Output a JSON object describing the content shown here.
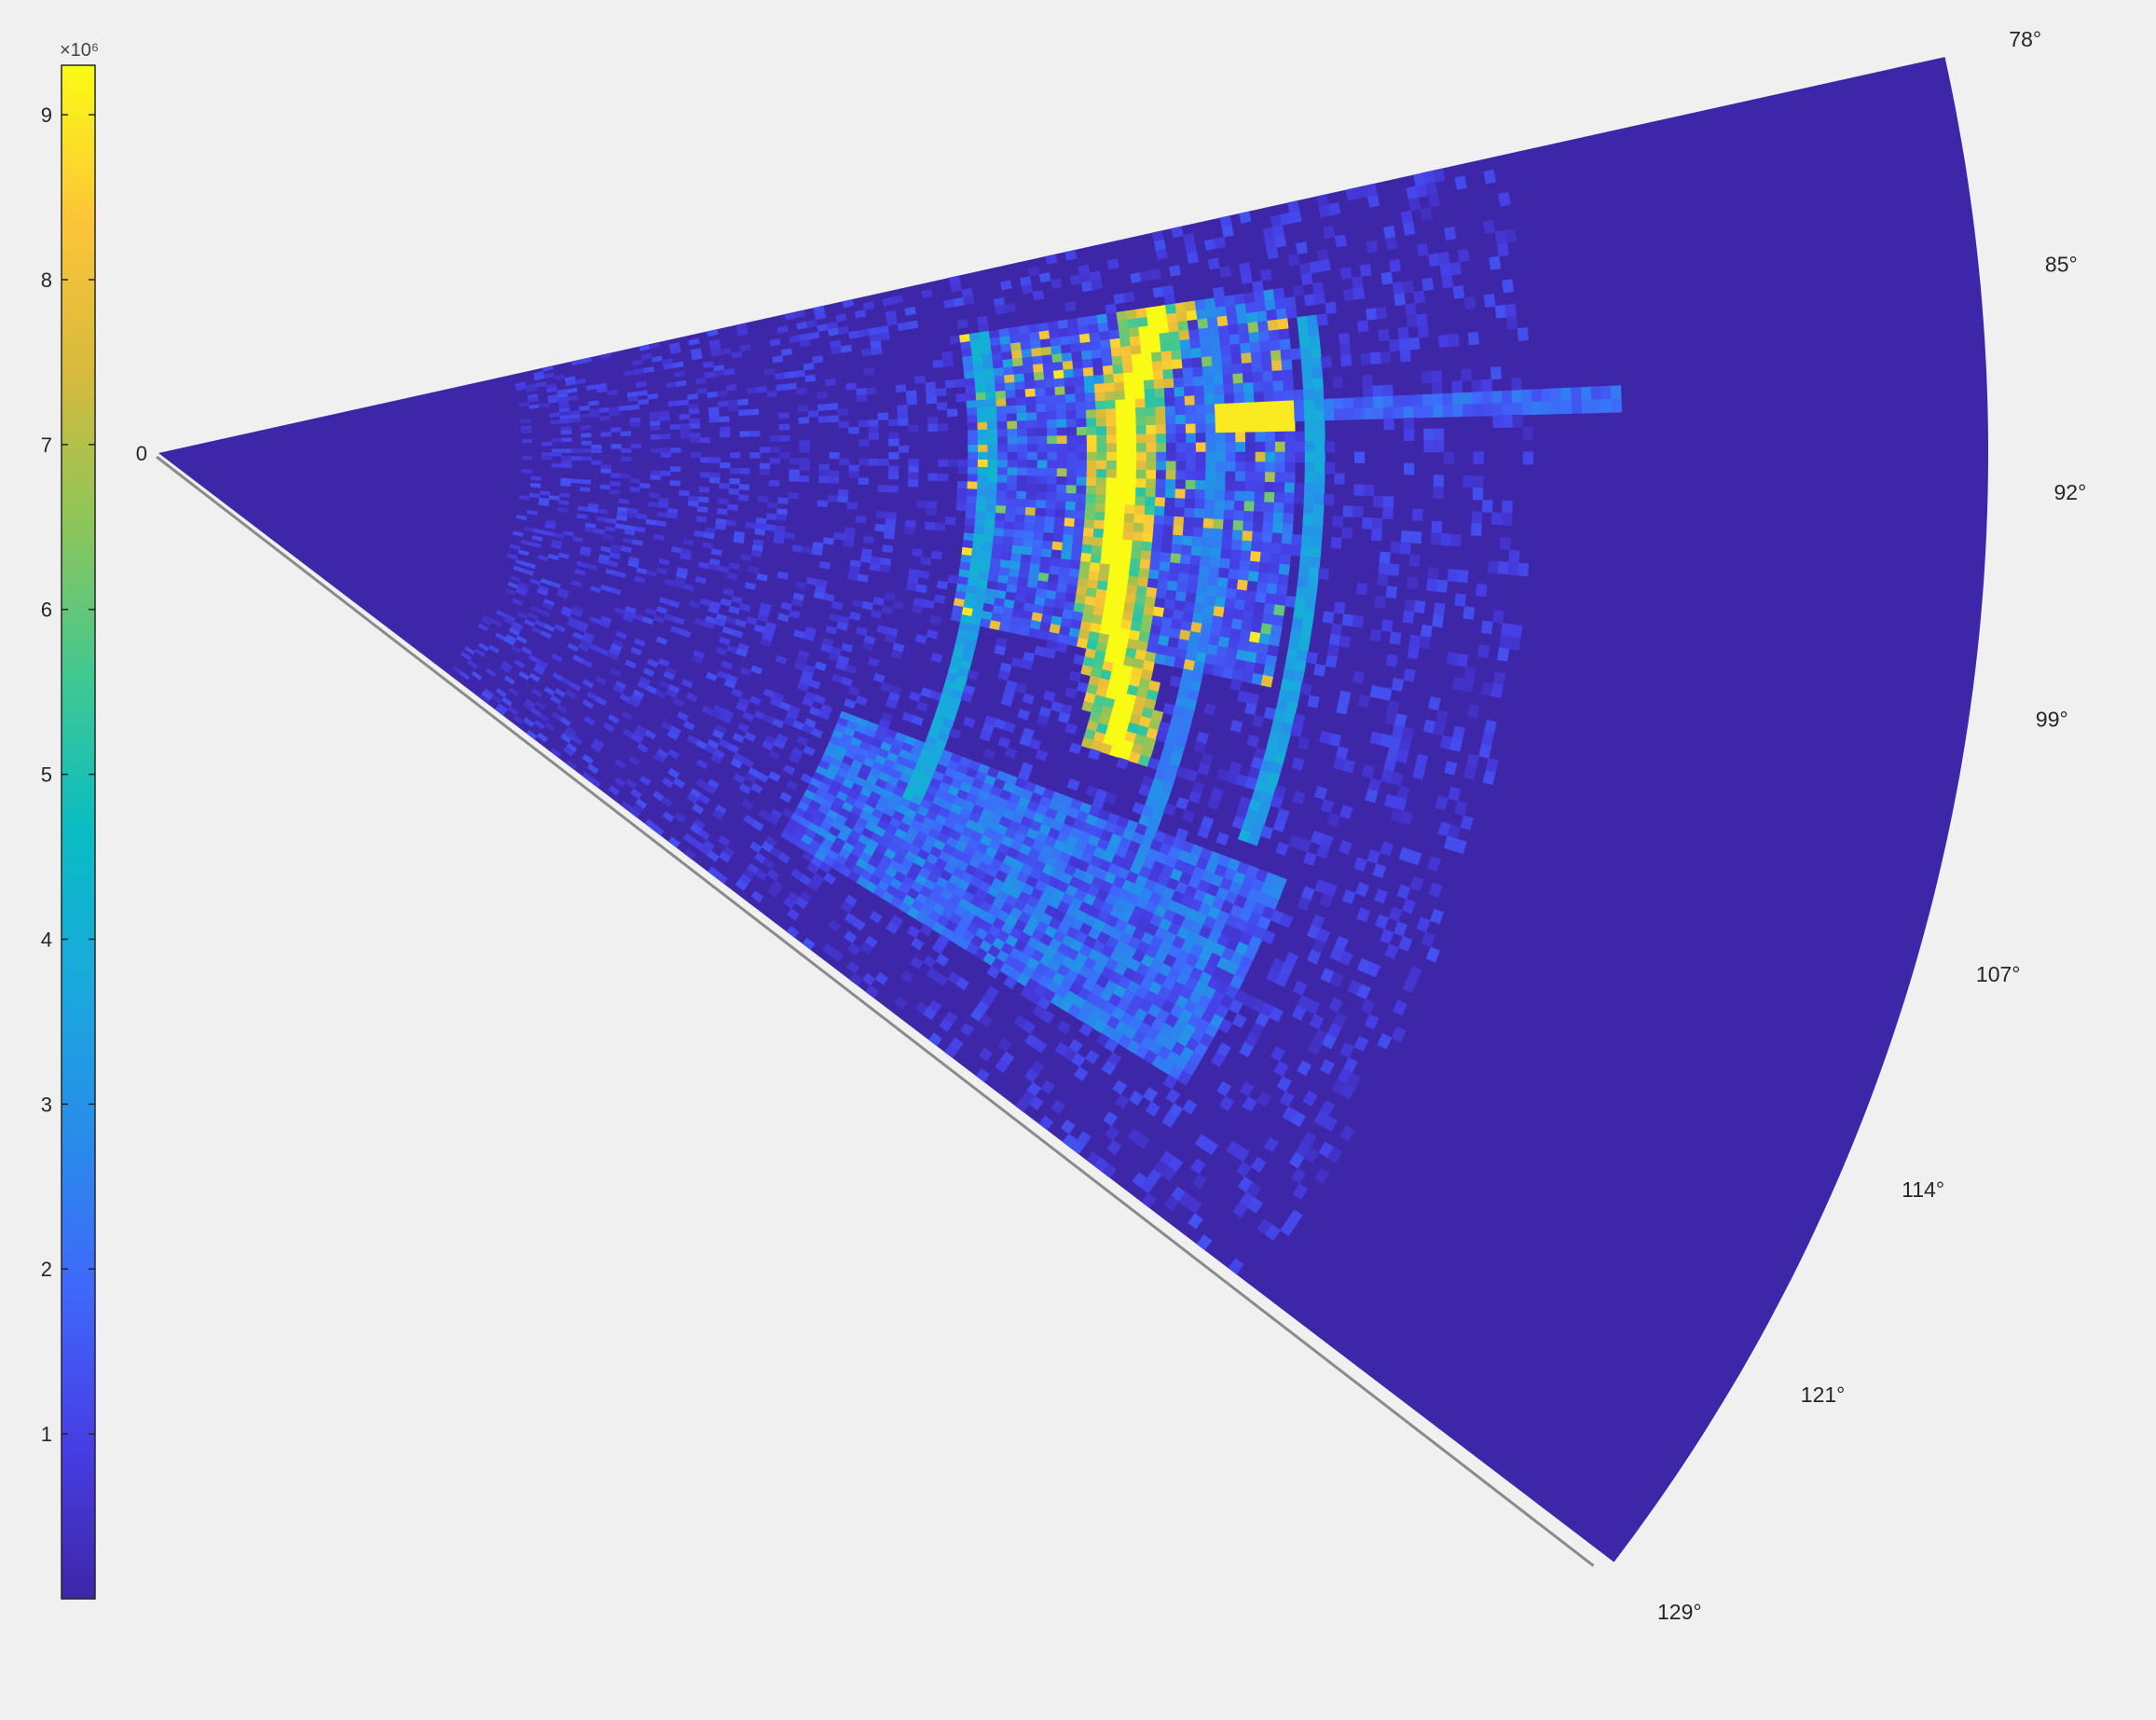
{
  "chart_data": {
    "type": "heatmap",
    "projection": "polar-sector",
    "theta_range_deg": [
      78,
      129
    ],
    "theta_ticks": [
      "78°",
      "85°",
      "92°",
      "99°",
      "107°",
      "114°",
      "121°",
      "129°"
    ],
    "theta_tick_values": [
      78,
      85,
      92,
      99,
      107,
      114,
      121,
      129
    ],
    "r_ticks": [
      "0"
    ],
    "grid": false,
    "colormap": "parula",
    "colorbar": {
      "placement": "left",
      "exponent_label": "×10⁶",
      "range": [
        0,
        9.3
      ],
      "ticks": [
        1,
        2,
        3,
        4,
        5,
        6,
        7,
        8,
        9
      ],
      "tick_labels": [
        "1",
        "2",
        "3",
        "4",
        "5",
        "6",
        "7",
        "8",
        "9"
      ]
    },
    "background_level": 0.25,
    "features": [
      {
        "kind": "bright-arc",
        "desc": "main yellow ridge",
        "theta_deg": [
          82,
          109
        ],
        "r_frac_at": [
          [
            82,
            0.555
          ],
          [
            88,
            0.53
          ],
          [
            95,
            0.525
          ],
          [
            101,
            0.53
          ],
          [
            106,
            0.545
          ],
          [
            109,
            0.55
          ]
        ],
        "value": 9.3
      },
      {
        "kind": "arc",
        "theta_deg": [
          82,
          116
        ],
        "r_frac": 0.455,
        "value": 4.3
      },
      {
        "kind": "arc",
        "theta_deg": [
          82,
          112
        ],
        "r_frac": 0.58,
        "value": 3.0
      },
      {
        "kind": "arc",
        "theta_deg": [
          84,
          111
        ],
        "r_frac": 0.63,
        "value": 4.0
      },
      {
        "kind": "ray",
        "theta_deg": 88.5,
        "r_frac": [
          0.55,
          0.82
        ],
        "value": 2.5
      },
      {
        "kind": "hotspot",
        "theta_deg": 88.8,
        "r_frac": 0.6,
        "value": 9.0
      },
      {
        "kind": "scatter-band",
        "theta_deg": [
          82,
          103
        ],
        "r_frac": [
          0.44,
          0.62
        ],
        "value": 6.0
      },
      {
        "kind": "wedge-tail",
        "theta_deg": [
          112,
          123
        ],
        "r_frac": [
          0.4,
          0.66
        ],
        "value": 2.5
      }
    ]
  }
}
